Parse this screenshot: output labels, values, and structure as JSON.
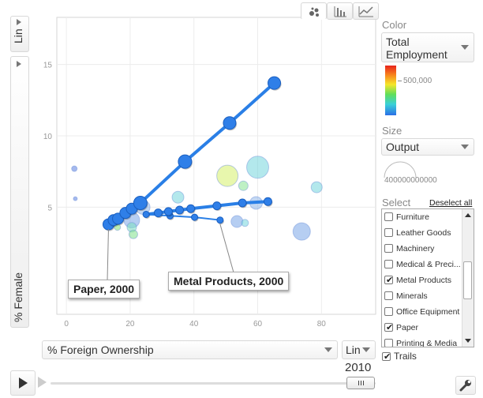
{
  "view_tabs": [
    {
      "name": "bubble-view-tab",
      "icon": "bubble-chart-icon"
    },
    {
      "name": "bar-view-tab",
      "icon": "bar-chart-icon"
    },
    {
      "name": "line-view-tab",
      "icon": "line-chart-icon"
    }
  ],
  "y_axis": {
    "scale": "Lin",
    "metric": "% Female"
  },
  "x_axis": {
    "metric": "% Foreign Ownership",
    "scale": "Lin"
  },
  "color_panel": {
    "title": "Color",
    "selected": "Total Employment",
    "legend_value": "500,000"
  },
  "size_panel": {
    "title": "Size",
    "selected": "Output",
    "legend_value": "400000000000"
  },
  "select_panel": {
    "title": "Select",
    "deselect_all": "Deselect all",
    "items": [
      {
        "label": "Furniture",
        "checked": false
      },
      {
        "label": "Leather Goods",
        "checked": false
      },
      {
        "label": "Machinery",
        "checked": false
      },
      {
        "label": "Medical & Preci...",
        "checked": false
      },
      {
        "label": "Metal Products",
        "checked": true
      },
      {
        "label": "Minerals",
        "checked": false
      },
      {
        "label": "Office Equipment",
        "checked": false
      },
      {
        "label": "Paper",
        "checked": true
      },
      {
        "label": "Printing & Media",
        "checked": false
      }
    ]
  },
  "trails": {
    "label": "Trails",
    "checked": true
  },
  "playback": {
    "year": "2010"
  },
  "chart_data": {
    "type": "scatter",
    "xlabel": "% Foreign Ownership",
    "ylabel": "% Female",
    "xlim": [
      -3,
      97
    ],
    "ylim": [
      -2.5,
      18.3
    ],
    "x_ticks": [
      "0",
      "20",
      "40",
      "60",
      "80"
    ],
    "y_ticks": [
      "5",
      "10",
      "15"
    ],
    "grid": true,
    "annotations": [
      "Paper, 2000",
      "Metal Products, 2000"
    ],
    "trails": [
      {
        "name": "Paper",
        "color": "#2a7fe6",
        "points": [
          {
            "x": 13.2,
            "y": 3.8
          },
          {
            "x": 14.8,
            "y": 4.1
          },
          {
            "x": 16.2,
            "y": 4.2
          },
          {
            "x": 18.5,
            "y": 4.6
          },
          {
            "x": 20.5,
            "y": 4.9
          },
          {
            "x": 23.2,
            "y": 5.3
          },
          {
            "x": 37.2,
            "y": 8.2
          },
          {
            "x": 51.2,
            "y": 10.9
          },
          {
            "x": 65.2,
            "y": 13.7
          }
        ]
      },
      {
        "name": "Metal Products",
        "color": "#2a7fe6",
        "points": [
          {
            "x": 48.2,
            "y": 4.1
          },
          {
            "x": 40.2,
            "y": 4.3
          },
          {
            "x": 32.5,
            "y": 4.4
          },
          {
            "x": 25.0,
            "y": 4.5
          },
          {
            "x": 28.8,
            "y": 4.6
          },
          {
            "x": 32.0,
            "y": 4.7
          },
          {
            "x": 35.5,
            "y": 4.8
          },
          {
            "x": 39.0,
            "y": 4.9
          },
          {
            "x": 47.2,
            "y": 5.1
          },
          {
            "x": 55.2,
            "y": 5.3
          },
          {
            "x": 63.2,
            "y": 5.4
          }
        ]
      }
    ],
    "bubbles": [
      {
        "x": 2.5,
        "y": 7.7,
        "color": "#5b7fe0"
      },
      {
        "x": 2.8,
        "y": 5.6,
        "color": "#5b7fe0"
      },
      {
        "x": 20.5,
        "y": 4.1,
        "color": "#7aa6e8"
      },
      {
        "x": 24.0,
        "y": 5.0,
        "color": "#8fb6ea"
      },
      {
        "x": 20.5,
        "y": 3.6,
        "color": "#7ee0c0"
      },
      {
        "x": 21.0,
        "y": 3.1,
        "color": "#7ee08a"
      },
      {
        "x": 16.0,
        "y": 3.6,
        "color": "#84e074"
      },
      {
        "x": 35.0,
        "y": 5.7,
        "color": "#74d6dc"
      },
      {
        "x": 50.5,
        "y": 7.2,
        "color": "#d6f06a"
      },
      {
        "x": 55.5,
        "y": 6.5,
        "color": "#88e494"
      },
      {
        "x": 60.0,
        "y": 7.8,
        "color": "#74d6dc"
      },
      {
        "x": 59.5,
        "y": 5.3,
        "color": "#8fb6ea"
      },
      {
        "x": 53.5,
        "y": 4.0,
        "color": "#7aa6e8"
      },
      {
        "x": 56.0,
        "y": 3.9,
        "color": "#74d6dc"
      },
      {
        "x": 78.5,
        "y": 6.4,
        "color": "#74d6dc"
      },
      {
        "x": 73.8,
        "y": 3.3,
        "color": "#7aa6e8"
      }
    ]
  }
}
